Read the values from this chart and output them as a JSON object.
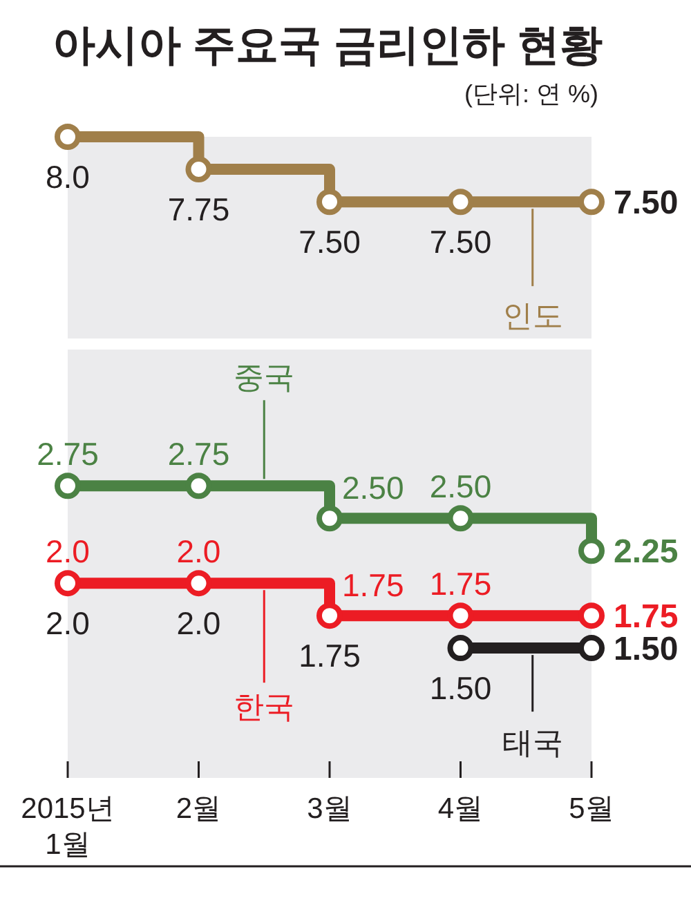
{
  "chart_data": [
    {
      "type": "step",
      "title": "아시아 주요국 금리인하 현황",
      "subtitle": "(단위: 연 %)",
      "categories": [
        null,
        null,
        null,
        null,
        null
      ],
      "ylim": [
        6.45,
        8.0
      ],
      "tick_labels": false,
      "marker": "circle",
      "series": [
        {
          "name": "인도",
          "color": "#a07f4a",
          "values": [
            8.0,
            7.75,
            7.5,
            7.5,
            7.5
          ],
          "value_labels": [
            "8.0",
            "7.75",
            "7.50",
            "7.50",
            "7.50"
          ]
        }
      ]
    },
    {
      "type": "step",
      "categories": [
        "2015년 1월",
        "2월",
        "3월",
        "4월",
        "5월"
      ],
      "ylim": [
        0.5,
        3.8
      ],
      "tick_labels": "x",
      "marker": "circle",
      "series": [
        {
          "name": "중국",
          "color": "#4b8244",
          "values": [
            2.75,
            2.75,
            2.5,
            2.5,
            2.25
          ],
          "value_labels": [
            "2.75",
            "2.75",
            "2.50",
            "2.50",
            "2.25"
          ]
        },
        {
          "name": "한국",
          "color": "#ec1c24",
          "values": [
            2.0,
            2.0,
            1.75,
            1.75,
            1.75
          ],
          "value_labels": [
            "2.0",
            "2.0",
            "1.75",
            "1.75",
            "1.75"
          ]
        },
        {
          "name": "태국",
          "color": "#231f20",
          "values": [
            null,
            null,
            null,
            1.5,
            1.5
          ],
          "value_labels": [
            null,
            null,
            null,
            "1.50",
            "1.50"
          ]
        }
      ],
      "annotations": [
        {
          "text": "2.0",
          "x": "2015년 1월",
          "y": 2.0
        },
        {
          "text": "2.0",
          "x": "2월",
          "y": 2.0
        },
        {
          "text": "1.75",
          "x": "3월",
          "y": 1.75
        }
      ]
    }
  ]
}
